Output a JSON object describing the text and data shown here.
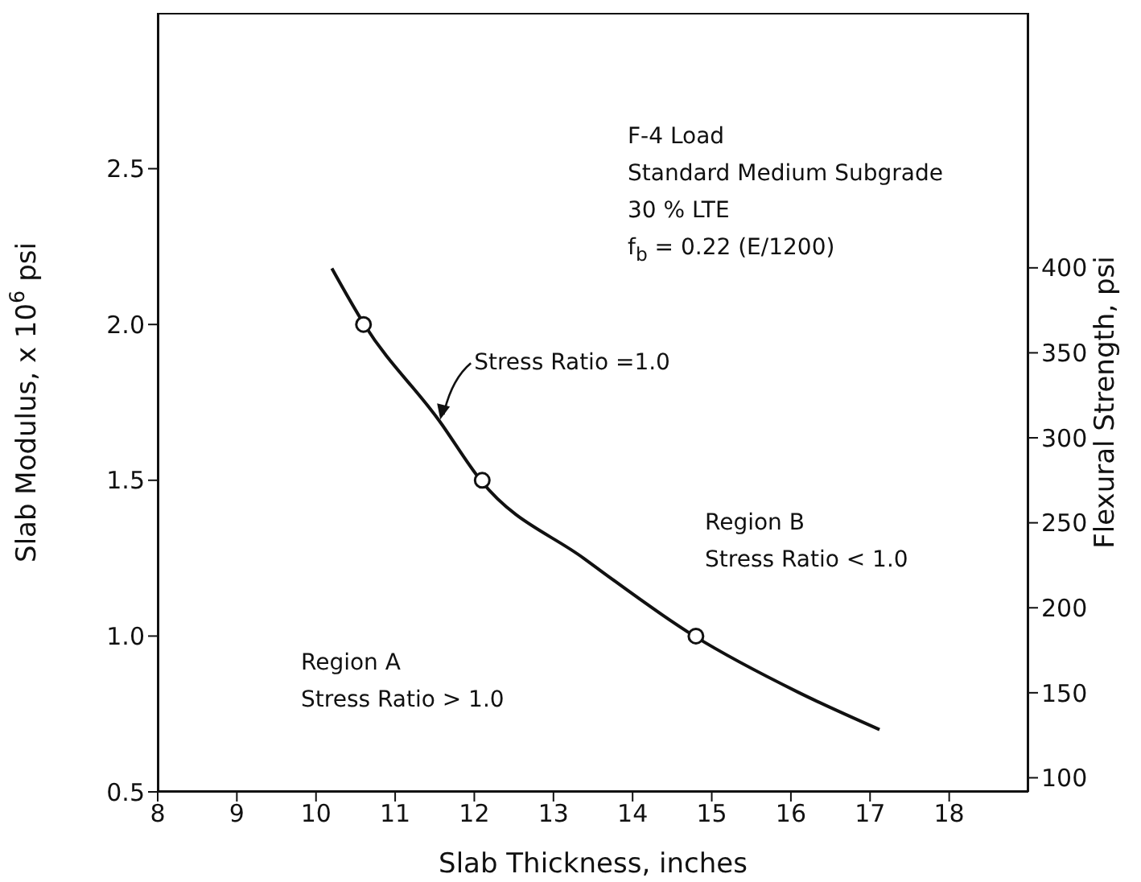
{
  "chart_data": {
    "type": "line",
    "xlabel": "Slab Thickness, inches",
    "ylabel": "Slab Modulus, x 10$^{6}$ psi",
    "y2label": "Flexural Strength, psi",
    "xlim": [
      8,
      19
    ],
    "xticks": [
      8,
      9,
      10,
      11,
      12,
      13,
      14,
      15,
      16,
      17,
      18
    ],
    "ylim": [
      0.5,
      3.0
    ],
    "yticks": [
      {
        "value": 0.5,
        "label": "0.5"
      },
      {
        "value": 1.0,
        "label": "1.0"
      },
      {
        "value": 1.5,
        "label": "1.5"
      },
      {
        "value": 2.0,
        "label": "2.0"
      },
      {
        "value": 2.5,
        "label": "2.5"
      }
    ],
    "y2lim": [
      91.7,
      550
    ],
    "y2ticks": [
      100,
      150,
      200,
      250,
      300,
      350,
      400
    ],
    "series": [
      {
        "type": "line",
        "color": "#111111",
        "marker": "none",
        "x": [
          10.2,
          10.61,
          11.56,
          12.08,
          13.38,
          14.78,
          16.09,
          17.12
        ],
        "values": [
          2.18,
          2.0,
          1.69,
          1.5,
          1.25,
          1.0,
          0.82,
          0.7
        ]
      },
      {
        "type": "scatter",
        "color": "#111111",
        "marker": "circle",
        "x": [
          10.6,
          12.1,
          14.8
        ],
        "values": [
          2.0,
          1.5,
          1.0
        ]
      }
    ],
    "annotations": [
      "F-4 Load\nStandard Medium Subgrade\n30 % LTE\nf$_{b}$ = 0.22 (E/1200)",
      {
        "text": "Stress Ratio =1.0",
        "x": 11.55,
        "y": 1.69
      },
      "Region B\nStress Ratio < 1.0",
      "Region A\nStress Ratio > 1.0"
    ]
  }
}
